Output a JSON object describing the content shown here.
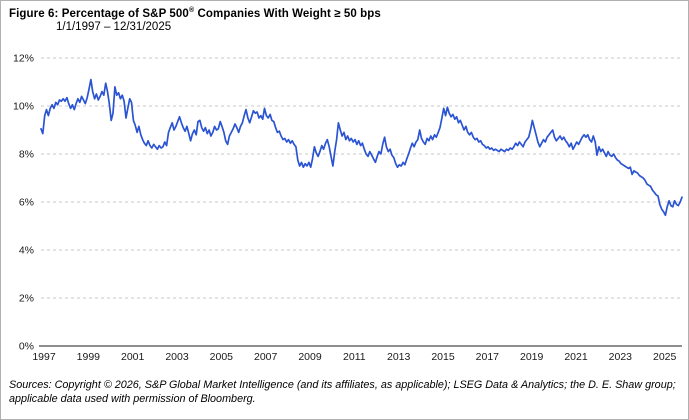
{
  "title": {
    "prefix": "Figure 6: Percentage of S&P 500",
    "registered_mark": "®",
    "suffix": " Companies With Weight ≥ 50 bps",
    "subtitle": "1/1/1997 – 12/31/2025"
  },
  "footer": {
    "line1": "Sources: Copyright © 2026, S&P Global Market Intelligence (and its affiliates, as applicable); LSEG Data & Analytics; the D. E. Shaw group;",
    "line2": "applicable data used with permission of Bloomberg."
  },
  "chart_data": {
    "type": "line",
    "title": "Figure 6: Percentage of S&P 500® Companies With Weight ≥ 50 bps",
    "subtitle": "1/1/1997 – 12/31/2025",
    "x_unit": "month",
    "x_start_year": 1997,
    "x_end_year": 2026,
    "ylim": [
      0,
      12
    ],
    "y_ticks": [
      "0%",
      "2%",
      "4%",
      "6%",
      "8%",
      "10%",
      "12%"
    ],
    "x_ticks": [
      "1997",
      "1999",
      "2001",
      "2003",
      "2005",
      "2007",
      "2009",
      "2011",
      "2013",
      "2015",
      "2017",
      "2019",
      "2021",
      "2023",
      "2025"
    ],
    "grid": "horizontal dashed, x-axis solid, no y-axis line, no legend",
    "line_color": "#2b54d3",
    "gridline_color": "#c9c9c9",
    "axis_color": "#4a4a4a",
    "tick_label_color": "#1a1a1a",
    "series": [
      {
        "name": "Percentage of S&P 500 companies with weight ≥ 50 bps",
        "values": [
          9.05,
          8.85,
          9.6,
          9.85,
          9.6,
          9.9,
          10.05,
          9.9,
          10.15,
          10.05,
          10.25,
          10.2,
          10.3,
          10.2,
          10.35,
          10.1,
          9.9,
          10.05,
          9.85,
          10.1,
          10.3,
          10.15,
          10.4,
          10.25,
          10.1,
          10.35,
          10.7,
          11.1,
          10.6,
          10.3,
          10.5,
          10.25,
          10.4,
          10.6,
          10.45,
          10.95,
          10.6,
          10.1,
          9.4,
          9.7,
          10.8,
          10.45,
          10.55,
          10.3,
          10.45,
          10.2,
          9.5,
          9.9,
          10.3,
          10.15,
          9.4,
          9.2,
          8.9,
          9.15,
          8.8,
          8.6,
          8.45,
          8.35,
          8.55,
          8.35,
          8.25,
          8.4,
          8.3,
          8.2,
          8.35,
          8.25,
          8.3,
          8.5,
          8.35,
          8.9,
          9.1,
          9.3,
          9.0,
          9.15,
          9.35,
          9.55,
          9.3,
          9.1,
          8.95,
          9.15,
          8.85,
          8.55,
          8.85,
          9.0,
          8.8,
          9.35,
          9.4,
          9.1,
          8.95,
          9.1,
          8.85,
          9.0,
          8.75,
          8.9,
          9.15,
          9.0,
          9.05,
          9.35,
          9.15,
          8.9,
          8.55,
          8.4,
          8.75,
          8.9,
          9.05,
          9.25,
          9.1,
          8.9,
          9.15,
          9.3,
          9.6,
          9.85,
          9.5,
          9.3,
          9.55,
          9.8,
          9.7,
          9.75,
          9.5,
          9.6,
          9.45,
          9.9,
          9.6,
          9.5,
          9.65,
          9.4,
          9.35,
          9.1,
          8.9,
          8.95,
          8.75,
          8.6,
          8.65,
          8.5,
          8.6,
          8.45,
          8.55,
          8.4,
          8.3,
          7.75,
          7.5,
          7.65,
          7.45,
          7.6,
          7.5,
          7.65,
          7.45,
          7.8,
          8.3,
          8.05,
          7.9,
          8.1,
          8.35,
          8.2,
          8.45,
          8.6,
          8.3,
          7.9,
          7.5,
          8.1,
          8.6,
          9.3,
          9.0,
          8.75,
          8.9,
          8.6,
          8.75,
          8.55,
          8.65,
          8.5,
          8.6,
          8.4,
          8.55,
          8.35,
          8.45,
          8.2,
          8.0,
          7.9,
          8.1,
          7.95,
          7.8,
          7.65,
          7.9,
          8.1,
          8.0,
          8.4,
          8.7,
          8.3,
          8.1,
          8.2,
          7.95,
          7.85,
          7.6,
          7.45,
          7.55,
          7.5,
          7.65,
          7.55,
          7.8,
          8.0,
          8.25,
          8.45,
          8.3,
          8.5,
          8.6,
          9.0,
          8.65,
          8.5,
          8.4,
          8.65,
          8.55,
          8.75,
          8.6,
          8.8,
          8.7,
          8.9,
          9.1,
          9.5,
          9.9,
          9.6,
          9.95,
          9.7,
          9.55,
          9.65,
          9.45,
          9.55,
          9.3,
          9.4,
          9.2,
          9.0,
          9.15,
          8.9,
          8.8,
          8.9,
          8.7,
          8.6,
          8.65,
          8.5,
          8.55,
          8.4,
          8.35,
          8.25,
          8.3,
          8.2,
          8.25,
          8.15,
          8.2,
          8.15,
          8.1,
          8.2,
          8.15,
          8.1,
          8.2,
          8.15,
          8.25,
          8.2,
          8.3,
          8.45,
          8.35,
          8.5,
          8.4,
          8.3,
          8.5,
          8.6,
          8.7,
          9.0,
          9.4,
          9.1,
          8.8,
          8.5,
          8.3,
          8.45,
          8.6,
          8.5,
          8.7,
          8.8,
          8.9,
          9.0,
          8.7,
          8.55,
          8.65,
          8.75,
          8.6,
          8.7,
          8.55,
          8.45,
          8.3,
          8.45,
          8.2,
          8.35,
          8.5,
          8.4,
          8.55,
          8.7,
          8.8,
          8.7,
          8.8,
          8.6,
          8.5,
          8.75,
          8.5,
          7.95,
          8.3,
          8.1,
          8.2,
          8.05,
          7.9,
          8.1,
          7.95,
          7.9,
          8.0,
          7.85,
          7.75,
          7.7,
          7.6,
          7.55,
          7.5,
          7.45,
          7.4,
          7.45,
          7.15,
          7.3,
          7.25,
          7.2,
          7.1,
          7.05,
          7.0,
          6.9,
          6.75,
          6.7,
          6.65,
          6.5,
          6.4,
          6.3,
          6.25,
          5.9,
          5.7,
          5.6,
          5.45,
          5.8,
          6.05,
          5.85,
          5.8,
          6.05,
          5.9,
          5.85,
          6.0,
          6.2
        ]
      }
    ]
  }
}
